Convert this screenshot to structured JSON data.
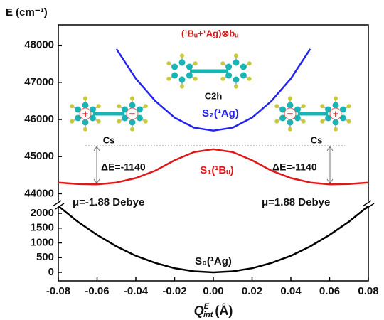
{
  "chart_data": {
    "type": "line",
    "ylabel": "E (cm⁻¹)",
    "xlabel": {
      "symbol": "Q",
      "superscript": "E",
      "subscript": "int",
      "unit": "(Å)"
    },
    "x": [
      -0.08,
      -0.07,
      -0.06,
      -0.05,
      -0.04,
      -0.03,
      -0.02,
      -0.01,
      0,
      0.01,
      0.02,
      0.03,
      0.04,
      0.05,
      0.06,
      0.07,
      0.08
    ],
    "xlim": [
      -0.08,
      0.08
    ],
    "xticks": [
      -0.08,
      -0.06,
      -0.04,
      -0.02,
      {
        "value": 0,
        "label": "0.00"
      },
      0.02,
      0.04,
      0.06,
      0.08
    ],
    "ylim": [
      43700,
      48550
    ],
    "yticks": [
      44000,
      45000,
      46000,
      47000,
      48000
    ],
    "y2lim": [
      -290,
      2290
    ],
    "y2ticks": [
      0,
      500,
      1000,
      1500,
      2000
    ],
    "series": [
      {
        "name": "S₂(¹Ag)",
        "color": "#2424f0",
        "values": [
          null,
          null,
          null,
          47900,
          47100,
          46500,
          46050,
          45780,
          45700,
          45780,
          46050,
          46500,
          47100,
          47900,
          null,
          null,
          null
        ]
      },
      {
        "name": "S₁(¹Bᵤ)",
        "color": "#e01818",
        "values": [
          44300,
          44260,
          44250,
          44300,
          44420,
          44620,
          44900,
          45120,
          45200,
          45120,
          44900,
          44620,
          44420,
          44300,
          44250,
          44260,
          44300
        ]
      },
      {
        "name": "S₀(¹Ag)",
        "color": "#000000",
        "axis": "y2",
        "values": [
          2250,
          1720,
          1270,
          880,
          560,
          320,
          140,
          35,
          0,
          35,
          140,
          320,
          560,
          880,
          1270,
          1720,
          2250
        ]
      }
    ],
    "annotations": {
      "state_mix": "(¹Bᵤ+¹Ag)⊗bᵤ",
      "c2h": "C2h",
      "cs_left": "Cs",
      "cs_right": "Cs",
      "de_left": "ΔE=-1140",
      "de_right": "ΔE=-1140",
      "mu_left": "μ=-1.88 Debye",
      "mu_right": "μ=1.88 Debye",
      "charges": [
        "+",
        "−",
        "−",
        "+"
      ]
    }
  }
}
